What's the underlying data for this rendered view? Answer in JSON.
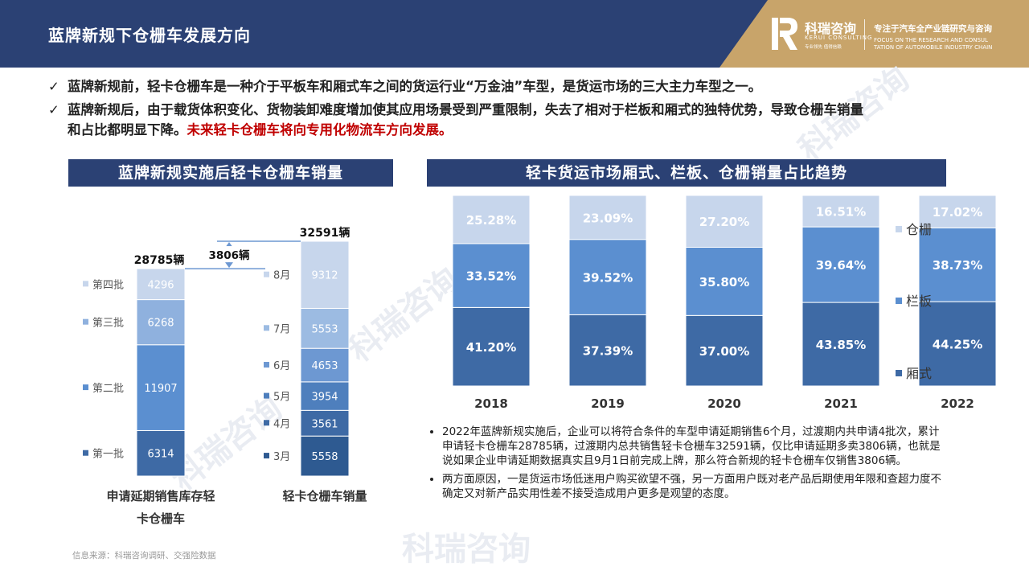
{
  "header": {
    "title": "蓝牌新规下仓栅车发展方向",
    "brand_cn": "科瑞咨询",
    "brand_en": "KERUI CONSULTING",
    "brand_tiny": "专业领先 值得信赖",
    "slogan": "专注于汽车全产业链研究与咨询",
    "slogan_en_1": "FOCUS ON THE RESEARCH AND CONSUL",
    "slogan_en_2": "TATION OF AUTOMOBILE INDUSTRY CHAIN"
  },
  "bullets": {
    "check": "✓",
    "b1": "蓝牌新规前，轻卡仓栅车是一种介于平板车和厢式车之间的货运行业“万金油”车型，是货运市场的三大主力车型之一。",
    "b2_line1": "蓝牌新规后，由于载货体积变化、货物装卸难度增加使其应用场景受到严重限制，失去了相对于栏板和厢式的独特优势，导致仓栅车销量",
    "b2_line2": "和占比都明显下降。",
    "b2_highlight": "未来轻卡仓栅车将向专用化物流车方向发展。"
  },
  "left_chart_title": "蓝牌新规实施后轻卡仓栅车销量",
  "right_chart_title": "轻卡货运市场厢式、栏板、仓栅销量占比趋势",
  "chart_data": [
    {
      "type": "bar",
      "stacked": true,
      "title": "蓝牌新规实施后轻卡仓栅车销量",
      "bars": [
        {
          "category_line1": "申请延期销售库存轻",
          "category_line2": "卡仓栅车",
          "total_label": "28785辆",
          "segments": [
            {
              "name": "第一批",
              "value": 6314,
              "color": "#3e6aa5"
            },
            {
              "name": "第二批",
              "value": 11907,
              "color": "#5b8fd0"
            },
            {
              "name": "第三批",
              "value": 6268,
              "color": "#8fb1de"
            },
            {
              "name": "第四批",
              "value": 4296,
              "color": "#c7d6ec"
            }
          ]
        },
        {
          "category_line1": "轻卡仓栅车销量",
          "category_line2": "",
          "total_label": "32591辆",
          "segments": [
            {
              "name": "3月",
              "value": 5558,
              "color": "#2e5a91"
            },
            {
              "name": "4月",
              "value": 3561,
              "color": "#3e6aa5"
            },
            {
              "name": "5月",
              "value": 3954,
              "color": "#4e7fbd"
            },
            {
              "name": "6月",
              "value": 4653,
              "color": "#6d98d2"
            },
            {
              "name": "7月",
              "value": 5553,
              "color": "#9cbbe2"
            },
            {
              "name": "8月",
              "value": 9312,
              "color": "#c7d6ec"
            }
          ]
        }
      ],
      "difference_label": "3806辆"
    },
    {
      "type": "bar",
      "stacked": true,
      "title": "轻卡货运市场厢式、栏板、仓栅销量占比趋势",
      "categories": [
        "2018",
        "2019",
        "2020",
        "2021",
        "2022"
      ],
      "series": [
        {
          "name": "厢式",
          "values": [
            41.2,
            37.39,
            37.0,
            43.85,
            44.25
          ],
          "labels": [
            "41.20%",
            "37.39%",
            "37.00%",
            "43.85%",
            "44.25%"
          ],
          "color": "#3e6aa5"
        },
        {
          "name": "栏板",
          "values": [
            33.52,
            39.52,
            35.8,
            39.64,
            38.73
          ],
          "labels": [
            "33.52%",
            "39.52%",
            "35.80%",
            "39.64%",
            "38.73%"
          ],
          "color": "#5b8fd0"
        },
        {
          "name": "仓栅",
          "values": [
            25.28,
            23.09,
            27.2,
            16.51,
            17.02
          ],
          "labels": [
            "25.28%",
            "23.09%",
            "27.20%",
            "16.51%",
            "17.02%"
          ],
          "color": "#c7d6ec"
        }
      ],
      "ylim": [
        0,
        100
      ]
    }
  ],
  "notes": {
    "n1": "2022年蓝牌新规实施后，企业可以将符合条件的车型申请延期销售6个月，过渡期内共申请4批次，累计申请轻卡仓栅车28785辆，过渡期内总共销售轻卡仓栅车32591辆，仅比申请延期多卖3806辆，也就是说如果企业申请延期数据真实且9月1日前完成上牌，那么符合新规的轻卡仓栅车仅销售3806辆。",
    "n2": "两方面原因，一是货运市场低迷用户购买欲望不强，另一方面用户既对老产品后期使用年限和查超力度不确定又对新产品实用性差不接受造成用户更多是观望的态度。"
  },
  "source": "信息来源：科瑞咨询调研、交强险数据",
  "watermark": "科瑞咨询"
}
